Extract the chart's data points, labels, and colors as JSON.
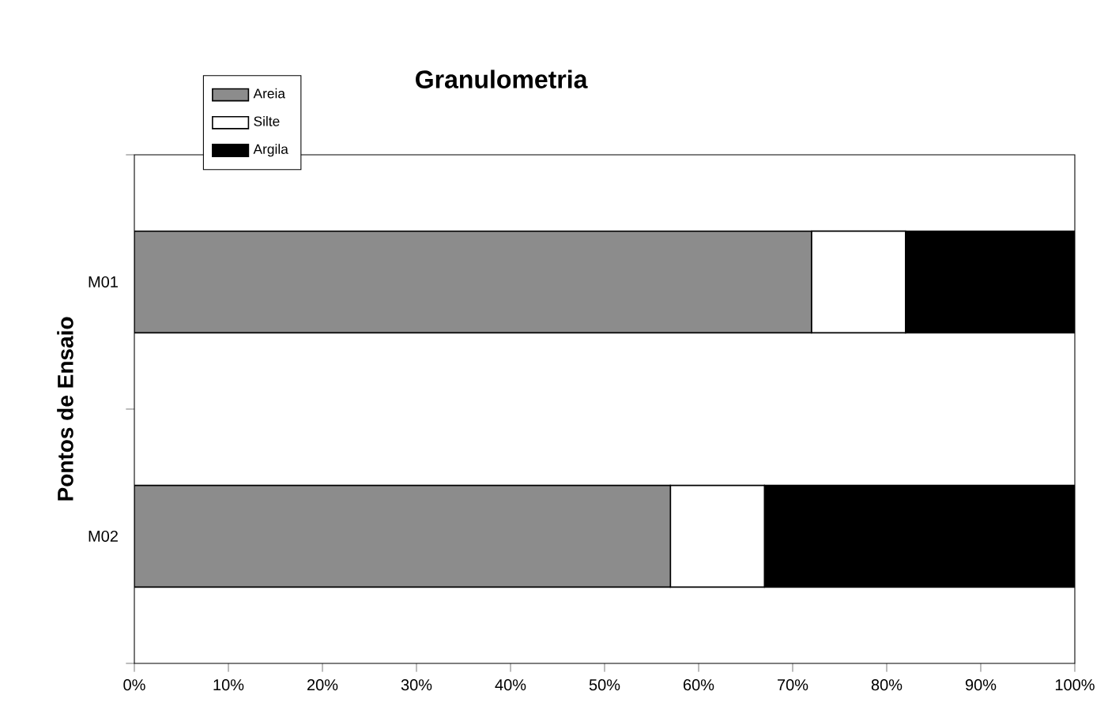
{
  "chart_data": {
    "type": "bar",
    "orientation": "horizontal",
    "stacked": true,
    "title": "Granulometria",
    "ylabel": "Pontos de Ensaio",
    "categories": [
      "M01",
      "M02"
    ],
    "series": [
      {
        "name": "Areia",
        "color": "#8c8c8c",
        "values": [
          72,
          57
        ]
      },
      {
        "name": "Silte",
        "color": "#ffffff",
        "values": [
          10,
          10
        ]
      },
      {
        "name": "Argila",
        "color": "#000000",
        "values": [
          18,
          33
        ]
      }
    ],
    "xlim": [
      0,
      100
    ],
    "xticks": [
      {
        "value": 0,
        "label": "0%"
      },
      {
        "value": 10,
        "label": "10%"
      },
      {
        "value": 20,
        "label": "20%"
      },
      {
        "value": 30,
        "label": "30%"
      },
      {
        "value": 40,
        "label": "40%"
      },
      {
        "value": 50,
        "label": "50%"
      },
      {
        "value": 60,
        "label": "60%"
      },
      {
        "value": 70,
        "label": "70%"
      },
      {
        "value": 80,
        "label": "80%"
      },
      {
        "value": 90,
        "label": "90%"
      },
      {
        "value": 100,
        "label": "100%"
      }
    ],
    "legend": "top left",
    "grid": false
  }
}
